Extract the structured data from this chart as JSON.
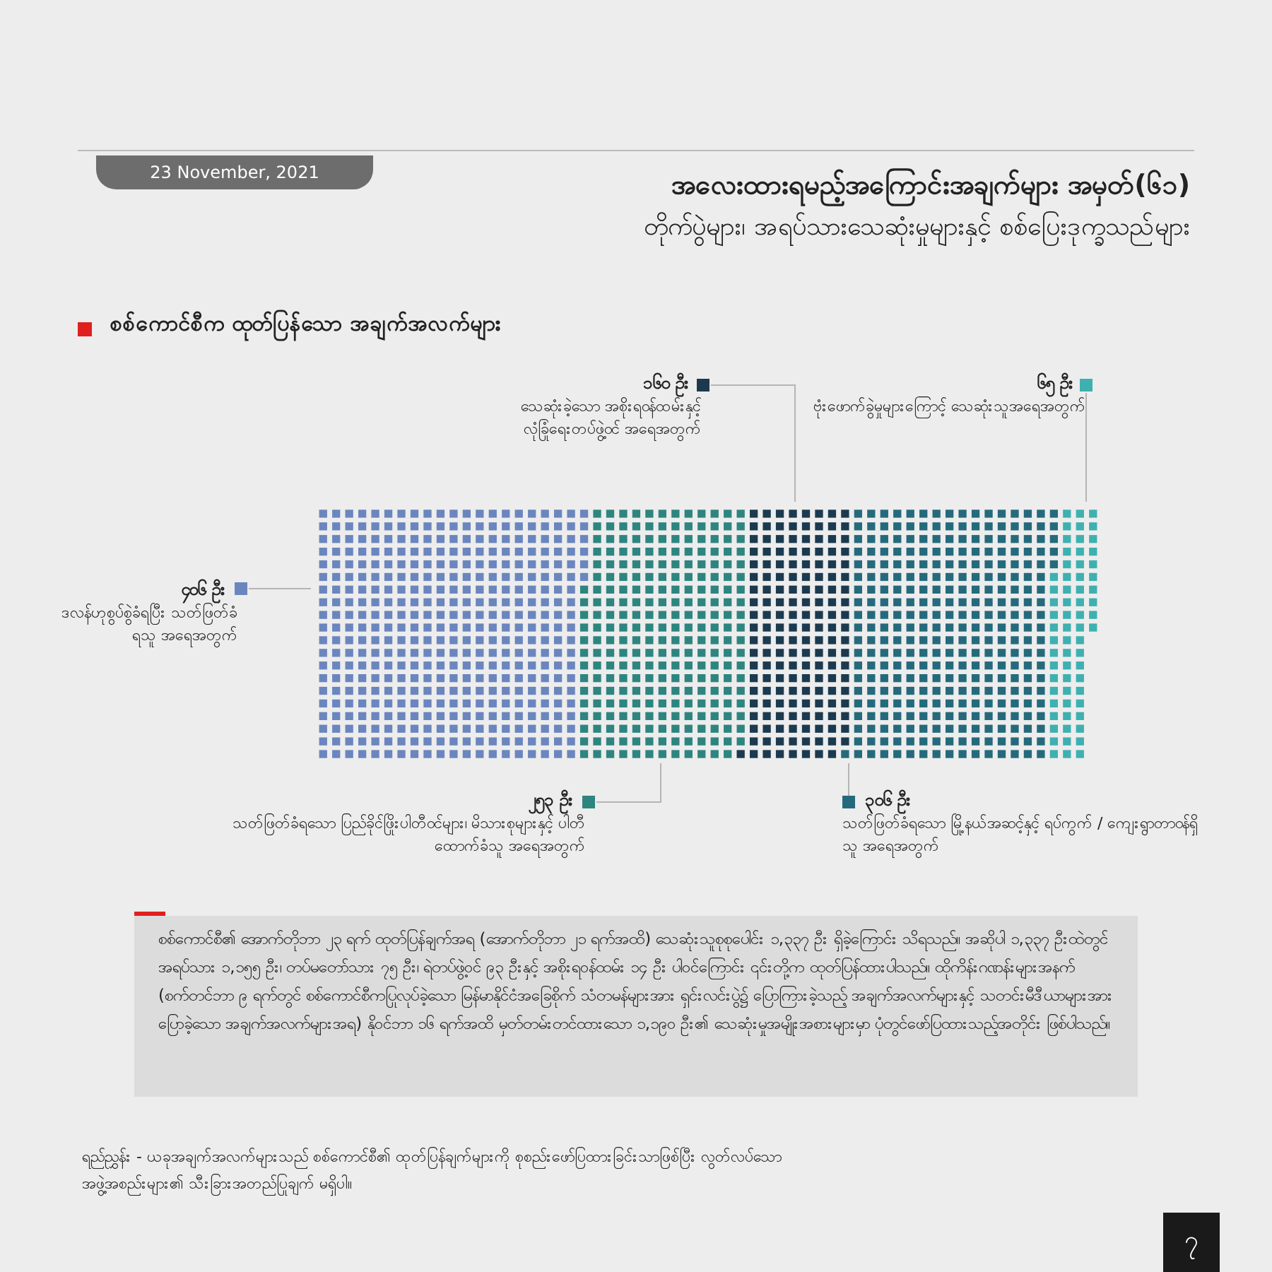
{
  "chart_data": {
    "type": "other",
    "title": "အလေးထားရမည့်အကြောင်းအချက်များ အမှတ်(၆၁)",
    "subtitle": "တိုက်ပွဲများ၊ အရပ်သားသေဆုံးမှုများနှင့် စစ်ပြေးဒုက္ခသည်များ",
    "categories": [
      "ဒလန်ဟုစွပ်စွဲခံရပြီး သတ်ဖြတ်ခံရသူ အရေအတွက်",
      "သတ်ဖြတ်ခံရသော ပြည်ခိုင်ဖြိုးပါတီဝင်များ၊ မိသားစုများနှင့် ပါတီထောက်ခံသူ အရေအတွက်",
      "သေဆုံးခဲ့သော အစိုးရဝန်ထမ်းနှင့် လုံခြုံရေးတပ်ဖွဲ့ဝင် အရေအတွက်",
      "သတ်ဖြတ်ခံရသော မြို့နယ်အဆင့်နှင့် ရပ်ကွက် / ကျေးရွာတာဝန်ရှိသူ အရေအတွက်",
      "ဗုံးဖောက်ခွဲမှုများကြောင့် သေဆုံးသူအရေအတွက်"
    ],
    "values": [
      406,
      253,
      160,
      306,
      65
    ],
    "value_labels": [
      "၄၀၆ ဦး",
      "၂၅၃ ဦး",
      "၁၆၀ ဦး",
      "၃၀၆ ဦး",
      "၆၅ ဦး"
    ],
    "colors": [
      "#6b86be",
      "#2e8580",
      "#1c3a4f",
      "#256a7c",
      "#3fb0b0"
    ],
    "annotations": [
      "23 November, 2021",
      "စစ်ကောင်စီက ထုတ်ပြန်သော အချက်အလက်များ",
      "စစ်ကောင်စီ၏ အောက်တိုဘာ ၂၃ ရက် ထုတ်ပြန်ချက်အရ (အောက်တိုဘာ ၂၁ ရက်အထိ) သေဆုံးသူစုစုပေါင်း ၁,၃၃၇ ဦး ရှိခဲ့ကြောင်း သိရသည်။ အဆိုပါ ၁,၃၃၇ ဦးထဲတွင် အရပ်သား ၁,၁၅၅ ဦး၊ တပ်မတော်သား ၇၅ ဦး၊ ရဲတပ်ဖွဲ့ဝင် ၉၃ ဦးနှင့် အစိုးရဝန်ထမ်း ၁၄ ဦး ပါဝင်ကြောင်း ၎င်းတို့က ထုတ်ပြန်ထားပါသည်။ ထိုကိန်းဂဏန်းများအနက် (စက်တင်ဘာ ၉ ရက်တွင် စစ်ကောင်စီကပြုလုပ်ခဲ့သော မြန်မာနိုင်ငံအခြေစိုက် သံတမန်များအား ရှင်းလင်းပွဲ၌ ပြောကြားခဲ့သည့် အချက်အလက်များနှင့် သတင်းမီဒီယာများအား ပြောခဲ့သော အချက်အလက်များအရ) နိုဝင်ဘာ ၁၆ ရက်အထိ မှတ်တမ်းတင်ထားသော ၁,၁၉၀ ဦး၏ သေဆုံးမှုအမျိုးအစားများမှာ ပုံတွင်ဖော်ပြထားသည့်အတိုင်း ဖြစ်ပါသည်။",
      "ရည်ညွှန်း - ယခုအချက်အလက်များသည် စစ်ကောင်စီ၏ ထုတ်ပြန်ချက်များကို စုစည်းဖော်ပြထားခြင်းသာဖြစ်ပြီး လွတ်လပ်သောအဖွဲ့အစည်းများ၏ သီးခြားအတည်ပြုချက် မရှိပါ။",
      "၇"
    ]
  }
}
